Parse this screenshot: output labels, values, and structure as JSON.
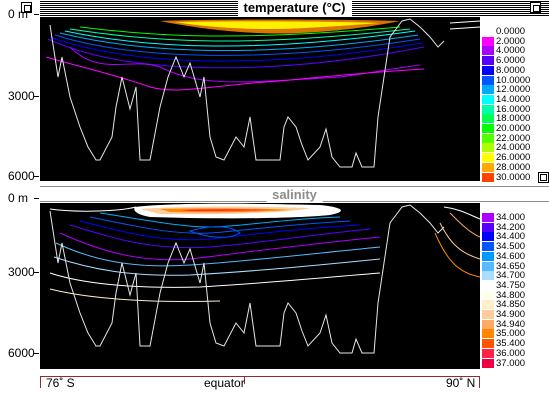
{
  "temperature_panel": {
    "title": "temperature (°C)",
    "depth_labels": [
      "0 m",
      "3000",
      "6000"
    ],
    "legend": [
      {
        "label": "0.0000",
        "color": "#ffffff"
      },
      {
        "label": "2.0000",
        "color": "#ff00ff"
      },
      {
        "label": "4.0000",
        "color": "#aa00ff"
      },
      {
        "label": "6.0000",
        "color": "#5500ff"
      },
      {
        "label": "8.0000",
        "color": "#0000ff"
      },
      {
        "label": "10.0000",
        "color": "#0055ff"
      },
      {
        "label": "12.0000",
        "color": "#00aaff"
      },
      {
        "label": "14.0000",
        "color": "#00ffff"
      },
      {
        "label": "16.0000",
        "color": "#00ffaa"
      },
      {
        "label": "18.0000",
        "color": "#00ff55"
      },
      {
        "label": "20.0000",
        "color": "#00ff00"
      },
      {
        "label": "22.0000",
        "color": "#55ff00"
      },
      {
        "label": "24.0000",
        "color": "#aaff00"
      },
      {
        "label": "26.0000",
        "color": "#ffff00"
      },
      {
        "label": "28.0000",
        "color": "#ffaa00"
      },
      {
        "label": "30.0000",
        "color": "#ff4400"
      }
    ]
  },
  "salinity_panel": {
    "title": "salinity",
    "depth_labels": [
      "0 m",
      "3000",
      "6000"
    ],
    "legend": [
      {
        "label": "34.000",
        "color": "#aa00ff"
      },
      {
        "label": "34.200",
        "color": "#5500ff"
      },
      {
        "label": "34.400",
        "color": "#0000ff"
      },
      {
        "label": "34.500",
        "color": "#0055ff"
      },
      {
        "label": "34.600",
        "color": "#0099ff"
      },
      {
        "label": "34.650",
        "color": "#55bbff"
      },
      {
        "label": "34.700",
        "color": "#aaddff"
      },
      {
        "label": "34.750",
        "color": "#ffffff"
      },
      {
        "label": "34.800",
        "color": "#ffffee"
      },
      {
        "label": "34.850",
        "color": "#ffeecc"
      },
      {
        "label": "34.900",
        "color": "#ffcc99"
      },
      {
        "label": "34.940",
        "color": "#ffaa66"
      },
      {
        "label": "35.000",
        "color": "#ff8800"
      },
      {
        "label": "35.400",
        "color": "#ff5500"
      },
      {
        "label": "36.000",
        "color": "#ff2244"
      },
      {
        "label": "37.000",
        "color": "#ee0044"
      }
    ]
  },
  "x_axis": {
    "left_label": "76˚ S",
    "center_label": "equator",
    "right_label": "90˚ N"
  }
}
